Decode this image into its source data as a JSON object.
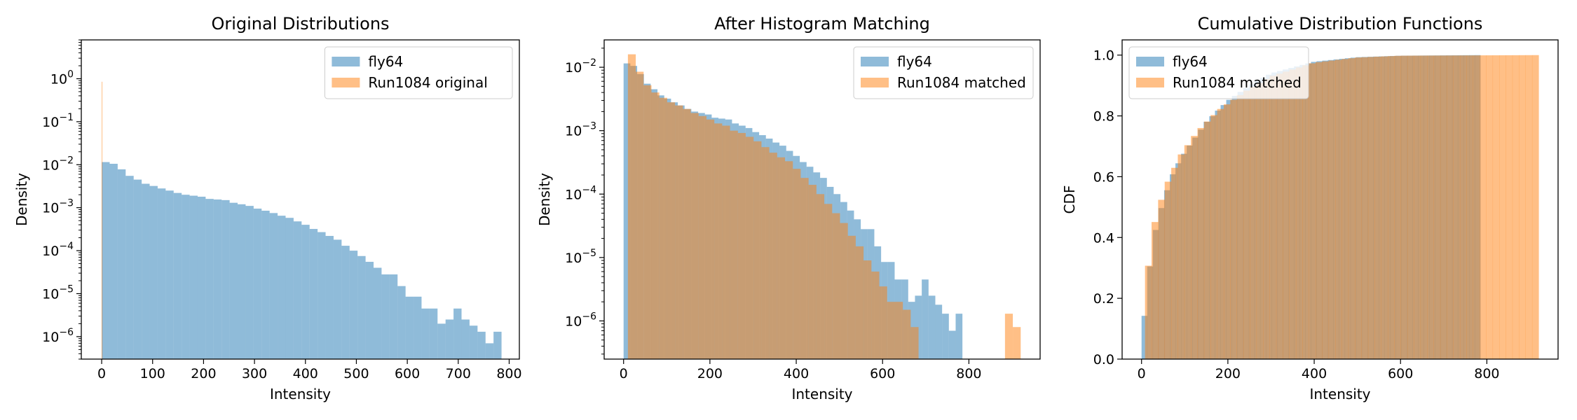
{
  "chart_data": [
    {
      "type": "bar",
      "title": "Original Distributions",
      "xlabel": "Intensity",
      "ylabel": "Density",
      "yscale": "log",
      "xlim": [
        -40,
        820
      ],
      "ylim": [
        3e-07,
        8
      ],
      "xticks": [
        0,
        100,
        200,
        300,
        400,
        500,
        600,
        700,
        800
      ],
      "ytick_exponents": [
        -6,
        -5,
        -4,
        -3,
        -2,
        -1,
        0
      ],
      "legend": "top-right",
      "grid": false,
      "series": [
        {
          "name": "fly64",
          "color": "#1f77b4",
          "alpha": 0.5,
          "bin_start": 0,
          "bin_width": 15.7,
          "values": [
            0.0115,
            0.0105,
            0.0078,
            0.0055,
            0.0045,
            0.0036,
            0.0032,
            0.0028,
            0.0025,
            0.0022,
            0.002,
            0.0019,
            0.0018,
            0.0016,
            0.00155,
            0.0015,
            0.0013,
            0.0012,
            0.0011,
            0.00095,
            0.00085,
            0.00075,
            0.00065,
            0.00058,
            0.00048,
            0.0004,
            0.00032,
            0.00027,
            0.00022,
            0.00018,
            0.00013,
            0.0001,
            7.5e-05,
            5.5e-05,
            4e-05,
            2.8e-05,
            2.8e-05,
            1.5e-05,
            8.5e-06,
            8.5e-06,
            4.5e-06,
            4.5e-06,
            2e-06,
            2.5e-06,
            4.5e-06,
            2.5e-06,
            1.8e-06,
            1.3e-06,
            7e-07,
            1.3e-06
          ]
        },
        {
          "name": "Run1084 original",
          "color": "#ff7f0e",
          "alpha": 0.5,
          "bin_start": 0,
          "bin_width": 1.3,
          "values": [
            0.85
          ]
        }
      ]
    },
    {
      "type": "bar",
      "title": "After Histogram Matching",
      "xlabel": "Intensity",
      "ylabel": "Density",
      "yscale": "log",
      "xlim": [
        -45,
        965
      ],
      "ylim": [
        2.5e-07,
        0.027
      ],
      "xticks": [
        0,
        200,
        400,
        600,
        800
      ],
      "ytick_exponents": [
        -6,
        -5,
        -4,
        -3,
        -2
      ],
      "legend": "top-right",
      "grid": false,
      "series": [
        {
          "name": "fly64",
          "color": "#1f77b4",
          "alpha": 0.5,
          "bin_start": 0,
          "bin_width": 15.7,
          "values": [
            0.0115,
            0.0105,
            0.0078,
            0.0055,
            0.0045,
            0.0036,
            0.0032,
            0.0028,
            0.0025,
            0.0022,
            0.002,
            0.0019,
            0.0018,
            0.0016,
            0.00155,
            0.0015,
            0.0013,
            0.0012,
            0.0011,
            0.00095,
            0.00085,
            0.00075,
            0.00065,
            0.00058,
            0.00048,
            0.0004,
            0.00032,
            0.00027,
            0.00022,
            0.00018,
            0.00013,
            0.0001,
            7.5e-05,
            5.5e-05,
            4e-05,
            2.8e-05,
            2.8e-05,
            1.5e-05,
            8.5e-06,
            8.5e-06,
            4.5e-06,
            4.5e-06,
            2e-06,
            2.5e-06,
            4.5e-06,
            2.5e-06,
            1.8e-06,
            1.3e-06,
            7e-07,
            1.3e-06
          ]
        },
        {
          "name": "Run1084 matched",
          "color": "#ff7f0e",
          "alpha": 0.5,
          "bin_start": 10,
          "bin_width": 18.2,
          "values": [
            0.016,
            0.0085,
            0.0052,
            0.004,
            0.0033,
            0.0028,
            0.0025,
            0.0022,
            0.0019,
            0.0017,
            0.0015,
            0.0013,
            0.0012,
            0.001,
            0.00092,
            0.0008,
            0.00068,
            0.00055,
            0.00045,
            0.00038,
            0.00033,
            0.00025,
            0.00018,
            0.00014,
            0.0001,
            7e-05,
            5e-05,
            3.5e-05,
            2.2e-05,
            1.5e-05,
            9e-06,
            6e-06,
            3.5e-06,
            2e-06,
            2e-06,
            1.5e-06,
            8e-07,
            0,
            0,
            0,
            0,
            0,
            0,
            0,
            0,
            0,
            0,
            0,
            1.3e-06,
            8e-07
          ]
        }
      ]
    },
    {
      "type": "bar",
      "title": "Cumulative Distribution Functions",
      "xlabel": "Intensity",
      "ylabel": "CDF",
      "yscale": "linear",
      "xlim": [
        -45,
        965
      ],
      "ylim": [
        0,
        1.05
      ],
      "xticks": [
        0,
        200,
        400,
        600,
        800
      ],
      "yticks": [
        "0.0",
        "0.2",
        "0.4",
        "0.6",
        "0.8",
        "1.0"
      ],
      "legend": "top-left",
      "grid": false,
      "series": [
        {
          "name": "fly64",
          "color": "#1f77b4",
          "alpha": 0.5,
          "cdf_end": 785,
          "cdf_values": [
            [
              0,
              0.09
            ],
            [
              10,
              0.17
            ],
            [
              20,
              0.31
            ],
            [
              30,
              0.41
            ],
            [
              50,
              0.52
            ],
            [
              75,
              0.62
            ],
            [
              100,
              0.68
            ],
            [
              150,
              0.78
            ],
            [
              200,
              0.85
            ],
            [
              250,
              0.9
            ],
            [
              300,
              0.94
            ],
            [
              400,
              0.978
            ],
            [
              500,
              0.993
            ],
            [
              600,
              0.998
            ],
            [
              785,
              1.0
            ]
          ]
        },
        {
          "name": "Run1084 matched",
          "color": "#ff7f0e",
          "alpha": 0.5,
          "cdf_end": 920,
          "cdf_values": [
            [
              8,
              0.18
            ],
            [
              15,
              0.3
            ],
            [
              25,
              0.42
            ],
            [
              40,
              0.5
            ],
            [
              60,
              0.58
            ],
            [
              90,
              0.67
            ],
            [
              130,
              0.75
            ],
            [
              180,
              0.82
            ],
            [
              240,
              0.88
            ],
            [
              300,
              0.93
            ],
            [
              400,
              0.975
            ],
            [
              500,
              0.992
            ],
            [
              600,
              0.998
            ],
            [
              920,
              1.0
            ]
          ]
        }
      ]
    }
  ]
}
